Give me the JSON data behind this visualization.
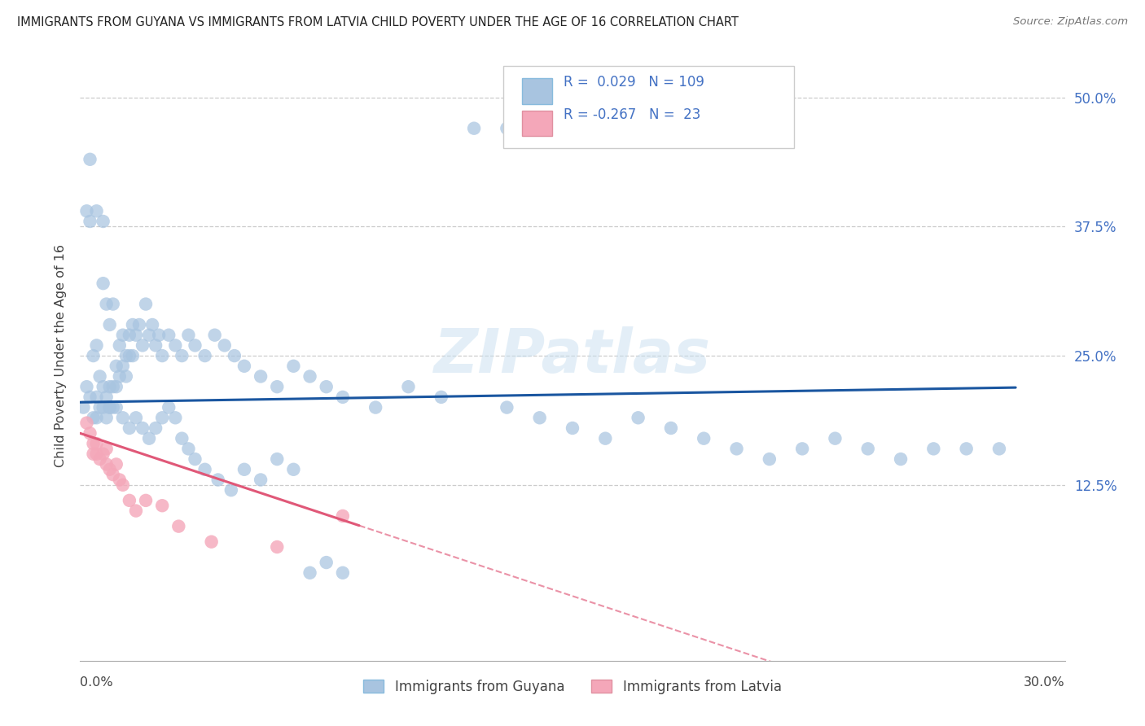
{
  "title": "IMMIGRANTS FROM GUYANA VS IMMIGRANTS FROM LATVIA CHILD POVERTY UNDER THE AGE OF 16 CORRELATION CHART",
  "source": "Source: ZipAtlas.com",
  "ylabel": "Child Poverty Under the Age of 16",
  "ytick_labels": [
    "12.5%",
    "25.0%",
    "37.5%",
    "50.0%"
  ],
  "ytick_vals": [
    0.125,
    0.25,
    0.375,
    0.5
  ],
  "legend_labels": [
    "Immigrants from Guyana",
    "Immigrants from Latvia"
  ],
  "R_guyana": 0.029,
  "N_guyana": 109,
  "R_latvia": -0.267,
  "N_latvia": 23,
  "xlim": [
    0.0,
    0.3
  ],
  "ylim": [
    -0.045,
    0.545
  ],
  "color_guyana": "#a8c4e0",
  "color_latvia": "#f4a7b9",
  "line_color_guyana": "#1a56a0",
  "line_color_latvia": "#e05878",
  "background_color": "#ffffff",
  "guyana_x": [
    0.001,
    0.002,
    0.002,
    0.003,
    0.003,
    0.004,
    0.004,
    0.005,
    0.005,
    0.005,
    0.006,
    0.006,
    0.007,
    0.007,
    0.007,
    0.008,
    0.008,
    0.008,
    0.009,
    0.009,
    0.009,
    0.01,
    0.01,
    0.01,
    0.011,
    0.011,
    0.012,
    0.012,
    0.013,
    0.013,
    0.014,
    0.014,
    0.015,
    0.015,
    0.016,
    0.016,
    0.017,
    0.018,
    0.019,
    0.02,
    0.021,
    0.022,
    0.023,
    0.024,
    0.025,
    0.027,
    0.029,
    0.031,
    0.033,
    0.035,
    0.038,
    0.041,
    0.044,
    0.047,
    0.05,
    0.055,
    0.06,
    0.065,
    0.07,
    0.075,
    0.08,
    0.09,
    0.1,
    0.11,
    0.12,
    0.13,
    0.14,
    0.15,
    0.16,
    0.17,
    0.18,
    0.19,
    0.2,
    0.21,
    0.22,
    0.23,
    0.24,
    0.25,
    0.26,
    0.27,
    0.28,
    0.003,
    0.005,
    0.007,
    0.009,
    0.011,
    0.013,
    0.015,
    0.017,
    0.019,
    0.021,
    0.023,
    0.025,
    0.027,
    0.029,
    0.031,
    0.033,
    0.035,
    0.038,
    0.042,
    0.046,
    0.05,
    0.055,
    0.06,
    0.065,
    0.07,
    0.075,
    0.08,
    0.13
  ],
  "guyana_y": [
    0.2,
    0.39,
    0.22,
    0.38,
    0.21,
    0.25,
    0.19,
    0.26,
    0.21,
    0.19,
    0.23,
    0.2,
    0.38,
    0.22,
    0.2,
    0.3,
    0.21,
    0.19,
    0.28,
    0.22,
    0.2,
    0.3,
    0.22,
    0.2,
    0.24,
    0.22,
    0.26,
    0.23,
    0.27,
    0.24,
    0.25,
    0.23,
    0.27,
    0.25,
    0.28,
    0.25,
    0.27,
    0.28,
    0.26,
    0.3,
    0.27,
    0.28,
    0.26,
    0.27,
    0.25,
    0.27,
    0.26,
    0.25,
    0.27,
    0.26,
    0.25,
    0.27,
    0.26,
    0.25,
    0.24,
    0.23,
    0.22,
    0.24,
    0.23,
    0.22,
    0.21,
    0.2,
    0.22,
    0.21,
    0.47,
    0.2,
    0.19,
    0.18,
    0.17,
    0.19,
    0.18,
    0.17,
    0.16,
    0.15,
    0.16,
    0.17,
    0.16,
    0.15,
    0.16,
    0.16,
    0.16,
    0.44,
    0.39,
    0.32,
    0.2,
    0.2,
    0.19,
    0.18,
    0.19,
    0.18,
    0.17,
    0.18,
    0.19,
    0.2,
    0.19,
    0.17,
    0.16,
    0.15,
    0.14,
    0.13,
    0.12,
    0.14,
    0.13,
    0.15,
    0.14,
    0.04,
    0.05,
    0.04,
    0.47
  ],
  "latvia_x": [
    0.002,
    0.003,
    0.004,
    0.004,
    0.005,
    0.005,
    0.006,
    0.007,
    0.008,
    0.008,
    0.009,
    0.01,
    0.011,
    0.012,
    0.013,
    0.015,
    0.017,
    0.02,
    0.025,
    0.03,
    0.04,
    0.06,
    0.08
  ],
  "latvia_y": [
    0.185,
    0.175,
    0.155,
    0.165,
    0.155,
    0.165,
    0.15,
    0.155,
    0.16,
    0.145,
    0.14,
    0.135,
    0.145,
    0.13,
    0.125,
    0.11,
    0.1,
    0.11,
    0.105,
    0.085,
    0.07,
    0.065,
    0.095
  ]
}
